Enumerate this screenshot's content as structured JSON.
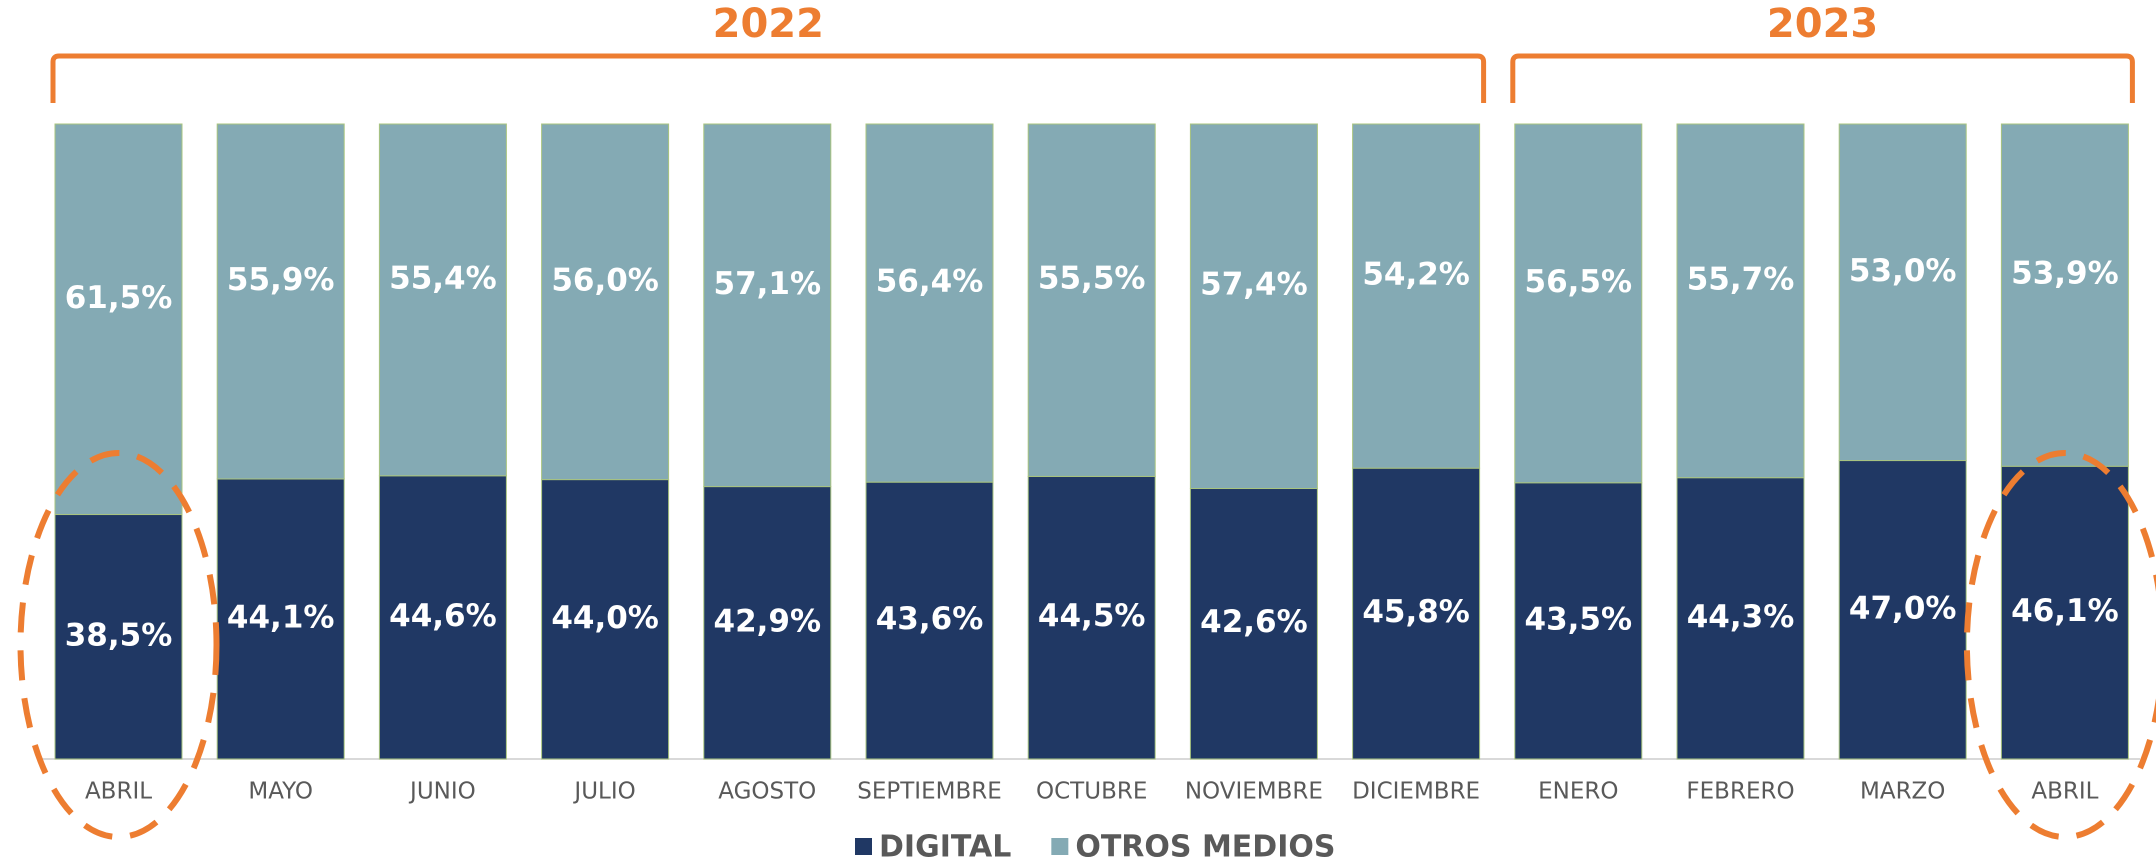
{
  "chart_data": {
    "type": "stacked_bar",
    "groups": [
      {
        "label": "2022",
        "categories": [
          "ABRIL",
          "MAYO",
          "JUNIO",
          "JULIO",
          "AGOSTO",
          "SEPTIEMBRE",
          "OCTUBRE",
          "NOVIEMBRE",
          "DICIEMBRE"
        ]
      },
      {
        "label": "2023",
        "categories": [
          "ENERO",
          "FEBRERO",
          "MARZO",
          "ABRIL"
        ]
      }
    ],
    "series": [
      {
        "name": "DIGITAL",
        "color": "#203864",
        "values": [
          38.5,
          44.1,
          44.6,
          44.0,
          42.9,
          43.6,
          44.5,
          42.6,
          45.8,
          43.5,
          44.3,
          47.0,
          46.1
        ],
        "value_labels": [
          "38,5%",
          "44,1%",
          "44,6%",
          "44,0%",
          "42,9%",
          "43,6%",
          "44,5%",
          "42,6%",
          "45,8%",
          "43,5%",
          "44,3%",
          "47,0%",
          "46,1%"
        ]
      },
      {
        "name": "OTROS MEDIOS",
        "color": "#84aab4",
        "values": [
          61.5,
          55.9,
          55.4,
          56.0,
          57.1,
          56.4,
          55.5,
          57.4,
          54.2,
          56.5,
          55.7,
          53.0,
          53.9
        ],
        "value_labels": [
          "61,5%",
          "55,9%",
          "55,4%",
          "56,0%",
          "57,1%",
          "56,4%",
          "55,5%",
          "57,4%",
          "54,2%",
          "56,5%",
          "55,7%",
          "53,0%",
          "53,9%"
        ]
      }
    ],
    "ylim": [
      0,
      100
    ],
    "annotation_color": "#ed7d31"
  }
}
